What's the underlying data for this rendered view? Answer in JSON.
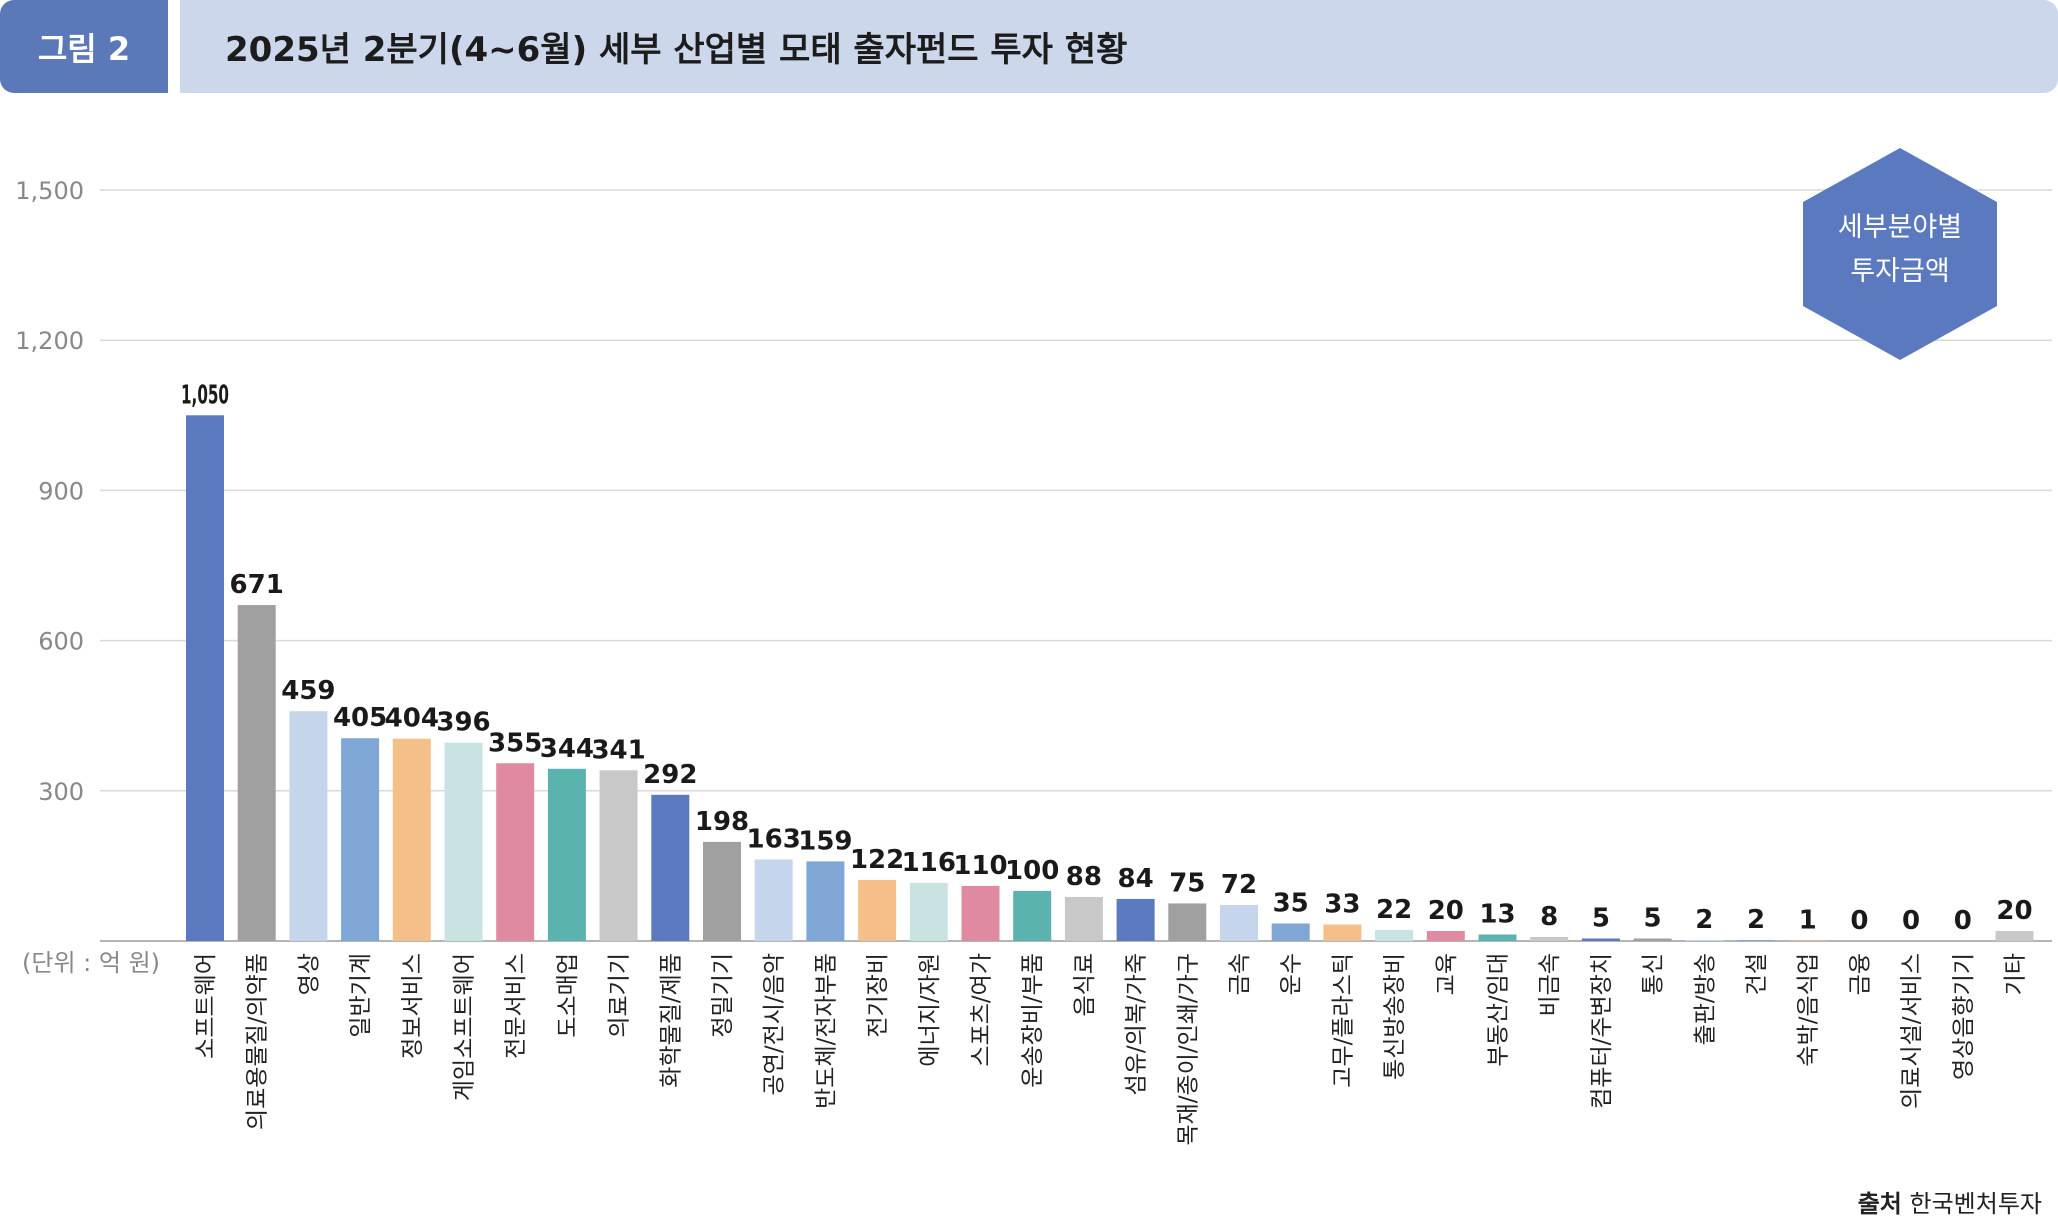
{
  "header": {
    "figure_label": "그림 2",
    "title": "2025년 2분기(4~6월) 세부 산업별 모태 출자펀드 투자 현황"
  },
  "badge": {
    "line1": "세부분야별",
    "line2": "투자금액"
  },
  "source": {
    "label": "출처",
    "text": "한국벤처투자"
  },
  "colors": {
    "accent": "#5b79b9",
    "title_bg": "#cdd7ec",
    "grid": "#d9d9d9"
  },
  "chart_data": {
    "type": "bar",
    "unit_label": "(단위 : 억 원)",
    "ylim": [
      0,
      1500
    ],
    "yticks": [
      300,
      600,
      900,
      1200,
      1500
    ],
    "ytick_labels": [
      "300",
      "600",
      "900",
      "1,200",
      "1,500"
    ],
    "grid": true,
    "categories": [
      "소프트웨어",
      "의료용물질/의약품",
      "영상",
      "일반기계",
      "정보서비스",
      "게임소프트웨어",
      "전문서비스",
      "도소매업",
      "의료기기",
      "화학물질/제품",
      "정밀기기",
      "공연/전시/음악",
      "반도체/전자부품",
      "전기장비",
      "에너지/자원",
      "스포츠/여가",
      "운송장비/부품",
      "음식료",
      "섬유/의복/가죽",
      "목재/종이/인쇄/가구",
      "금속",
      "운수",
      "고무/플라스틱",
      "통신방송장비",
      "교육",
      "부동산/임대",
      "비금속",
      "컴퓨터/주변장치",
      "통신",
      "출판/방송",
      "건설",
      "숙박/음식업",
      "금융",
      "의료시설/서비스",
      "영상음향기기",
      "기타"
    ],
    "values": [
      1050,
      671,
      459,
      405,
      404,
      396,
      355,
      344,
      341,
      292,
      198,
      163,
      159,
      122,
      116,
      110,
      100,
      88,
      84,
      75,
      72,
      35,
      33,
      22,
      20,
      13,
      8,
      5,
      5,
      2,
      2,
      1,
      0,
      0,
      0,
      20
    ],
    "value_labels": [
      "1,050",
      "671",
      "459",
      "405",
      "404",
      "396",
      "355",
      "344",
      "341",
      "292",
      "198",
      "163",
      "159",
      "122",
      "116",
      "110",
      "100",
      "88",
      "84",
      "75",
      "72",
      "35",
      "33",
      "22",
      "20",
      "13",
      "8",
      "5",
      "5",
      "2",
      "2",
      "1",
      "0",
      "0",
      "0",
      "20"
    ],
    "bar_colors": [
      "#5b79bf",
      "#a0a0a0",
      "#c5d5ec",
      "#7fa7d6",
      "#f5bf8a",
      "#c9e2e2",
      "#df8aa1",
      "#5bb3b0",
      "#c8c8c8",
      "#5b79bf",
      "#a0a0a0",
      "#c5d5ec",
      "#7fa7d6",
      "#f5bf8a",
      "#c9e2e2",
      "#df8aa1",
      "#5bb3b0",
      "#c8c8c8",
      "#5b79bf",
      "#a0a0a0",
      "#c5d5ec",
      "#7fa7d6",
      "#f5bf8a",
      "#c9e2e2",
      "#df8aa1",
      "#5bb3b0",
      "#c8c8c8",
      "#5b79bf",
      "#a0a0a0",
      "#c5d5ec",
      "#7fa7d6",
      "#f5bf8a",
      "#c9e2e2",
      "#df8aa1",
      "#5bb3b0",
      "#c8c8c8"
    ]
  }
}
